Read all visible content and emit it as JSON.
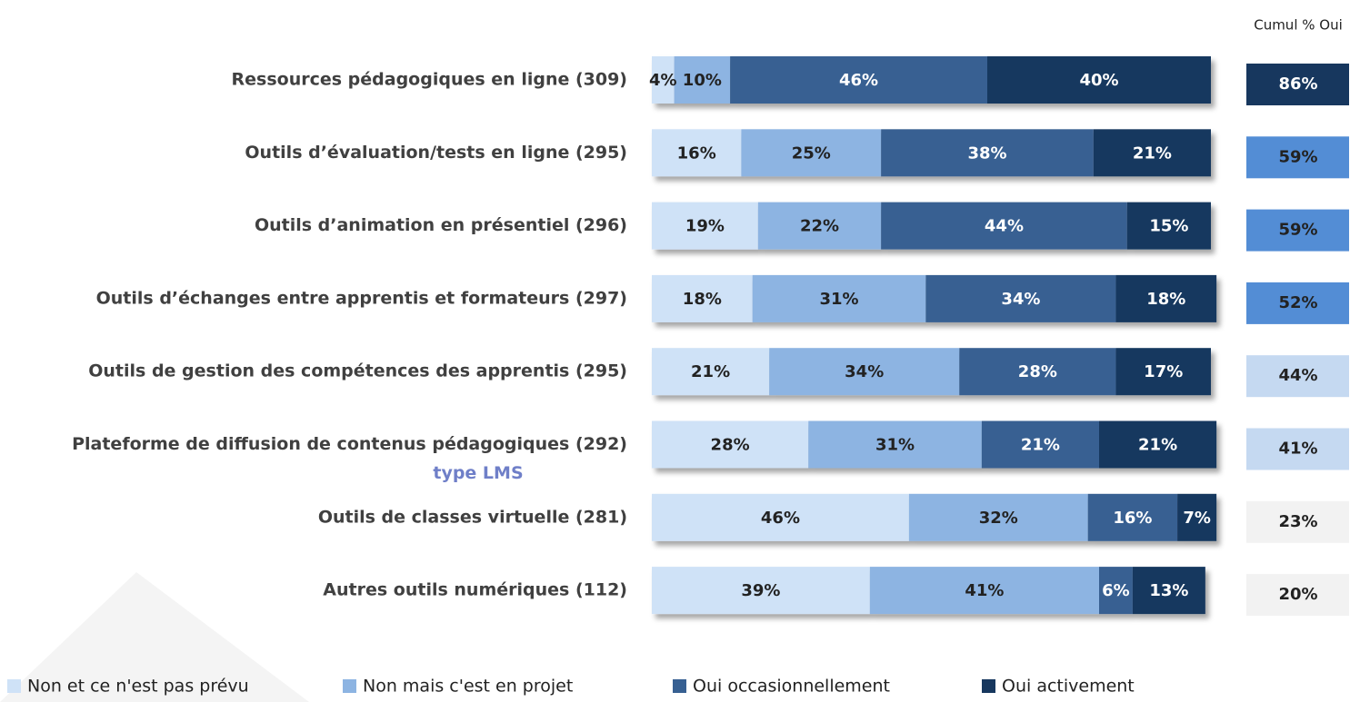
{
  "chart_data": {
    "type": "stacked-bar-horizontal",
    "categories": [
      "Ressources pédagogiques en ligne (309)",
      "Outils d’évaluation/tests en ligne (295)",
      "Outils d’animation  en présentiel  (296)",
      "Outils d’échanges entre apprentis et formateurs  (297)",
      "Outils de gestion des compétences des apprentis (295)",
      "Plateforme de diffusion de contenus pédagogiques (292)",
      "Outils de classes virtuelle (281)",
      "Autres outils numériques (112)"
    ],
    "category_subtitles": [
      null,
      null,
      null,
      null,
      null,
      "type LMS",
      null,
      null
    ],
    "xlim": [
      0,
      100
    ],
    "series": [
      {
        "name": "Non et ce n'est pas prévu",
        "color": "#cfe2f7",
        "values": [
          4,
          16,
          19,
          18,
          21,
          28,
          46,
          39
        ],
        "value_labels": [
          "4%",
          "16%",
          "19%",
          "18%",
          "21%",
          "28%",
          "46%",
          "39%"
        ]
      },
      {
        "name": "Non mais c'est en projet",
        "color": "#8db4e2",
        "values": [
          10,
          25,
          22,
          31,
          34,
          31,
          32,
          41
        ],
        "value_labels": [
          "10%",
          "25%",
          "22%",
          "31%",
          "34%",
          "31%",
          "32%",
          "41%"
        ]
      },
      {
        "name": "Oui occasionnellement",
        "color": "#376092",
        "values": [
          46,
          38,
          44,
          34,
          28,
          21,
          16,
          6
        ],
        "value_labels": [
          "46%",
          "38%",
          "44%",
          "34%",
          "28%",
          "21%",
          "16%",
          "6%"
        ]
      },
      {
        "name": "Oui activement",
        "color": "#17375e",
        "values": [
          40,
          21,
          15,
          18,
          17,
          21,
          7,
          13
        ],
        "value_labels": [
          "40%",
          "21%",
          "15%",
          "18%",
          "17%",
          "21%",
          "7%",
          "13%"
        ]
      }
    ],
    "cumul": {
      "title": "Cumul % Oui",
      "values": [
        86,
        59,
        59,
        52,
        44,
        41,
        23,
        20
      ],
      "value_labels": [
        "86%",
        "59%",
        "59%",
        "52%",
        "44%",
        "41%",
        "23%",
        "20%"
      ],
      "colors": [
        "#17375e",
        "#538dd5",
        "#538dd5",
        "#538dd5",
        "#c5d9f1",
        "#c5d9f1",
        "#f2f2f2",
        "#f2f2f2"
      ]
    }
  }
}
